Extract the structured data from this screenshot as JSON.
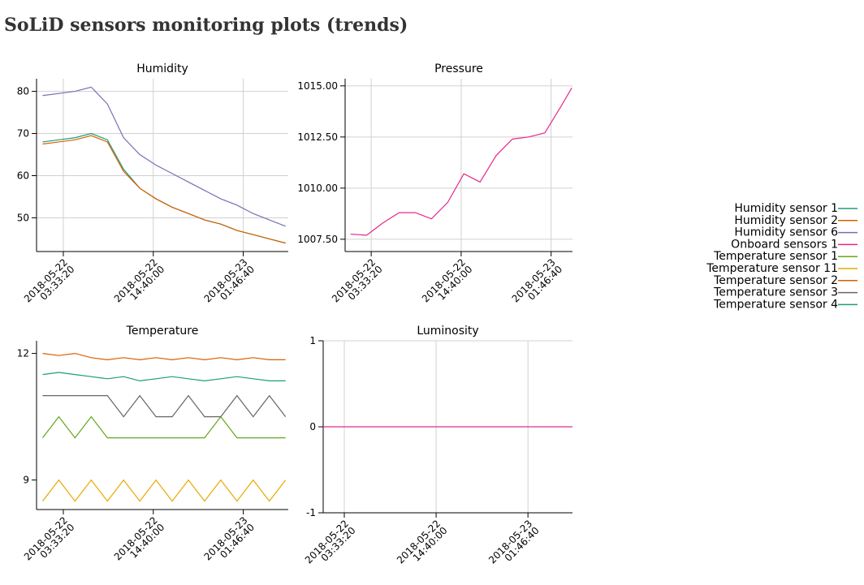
{
  "title": "SoLiD sensors monitoring plots (trends)",
  "chart_data": [
    {
      "type": "line",
      "title": "Humidity",
      "x": [
        "2018-05-22 01:00:00",
        "2018-05-22 03:00:00",
        "2018-05-22 05:00:00",
        "2018-05-22 07:00:00",
        "2018-05-22 09:00:00",
        "2018-05-22 11:00:00",
        "2018-05-22 13:00:00",
        "2018-05-22 15:00:00",
        "2018-05-22 17:00:00",
        "2018-05-22 19:00:00",
        "2018-05-22 21:00:00",
        "2018-05-22 23:00:00",
        "2018-05-23 01:00:00",
        "2018-05-23 03:00:00",
        "2018-05-23 05:00:00",
        "2018-05-23 07:00:00"
      ],
      "xlim": [
        "2018-05-22 00:15:00",
        "2018-05-23 07:20:00"
      ],
      "xticks": [
        "2018-05-22 03:33:20",
        "2018-05-22 14:40:00",
        "2018-05-23 01:46:40"
      ],
      "ylim": [
        42,
        83
      ],
      "yticks": [
        50,
        60,
        70,
        80
      ],
      "grid": true,
      "series": [
        {
          "name": "Humidity sensor 1",
          "color": "#1b9e77",
          "values": [
            68,
            68.5,
            69,
            70,
            68.5,
            61.5,
            57,
            54.5,
            52.5,
            51,
            49.5,
            48.5,
            47,
            46,
            45,
            44
          ]
        },
        {
          "name": "Humidity sensor 2",
          "color": "#d95f02",
          "values": [
            67.5,
            68,
            68.5,
            69.5,
            68,
            61,
            57,
            54.5,
            52.5,
            51,
            49.5,
            48.5,
            47,
            46,
            45,
            44
          ]
        },
        {
          "name": "Humidity sensor 6",
          "color": "#7570b3",
          "values": [
            79,
            79.5,
            80,
            81,
            77,
            69,
            65,
            62.5,
            60.5,
            58.5,
            56.5,
            54.5,
            53,
            51,
            49.5,
            48
          ]
        }
      ]
    },
    {
      "type": "line",
      "title": "Pressure",
      "x": [
        "2018-05-22 01:00:00",
        "2018-05-22 03:00:00",
        "2018-05-22 05:00:00",
        "2018-05-22 07:00:00",
        "2018-05-22 09:00:00",
        "2018-05-22 11:00:00",
        "2018-05-22 13:00:00",
        "2018-05-22 15:00:00",
        "2018-05-22 17:00:00",
        "2018-05-22 19:00:00",
        "2018-05-22 21:00:00",
        "2018-05-22 23:00:00",
        "2018-05-23 01:00:00",
        "2018-05-23 03:00:00",
        "2018-05-23 04:20:00"
      ],
      "xlim": [
        "2018-05-22 00:20:00",
        "2018-05-23 04:25:00"
      ],
      "xticks": [
        "2018-05-22 03:33:20",
        "2018-05-22 14:40:00",
        "2018-05-23 01:46:40"
      ],
      "ylim": [
        1006.9,
        1015.35
      ],
      "yticks": [
        {
          "value": 1007.5,
          "label": "1007.50"
        },
        {
          "value": 1010,
          "label": "1010.00"
        },
        {
          "value": 1012.5,
          "label": "1012.50"
        },
        {
          "value": 1015,
          "label": "1015.00"
        }
      ],
      "grid": true,
      "series": [
        {
          "name": "Onboard sensors 1",
          "color": "#e7298a",
          "values": [
            1007.75,
            1007.7,
            1008.3,
            1008.8,
            1008.8,
            1008.5,
            1009.3,
            1010.7,
            1010.3,
            1011.6,
            1012.4,
            1012.5,
            1012.7,
            1014.0,
            1014.9
          ]
        }
      ]
    },
    {
      "type": "line",
      "title": "Temperature",
      "x": [
        "2018-05-22 01:00:00",
        "2018-05-22 03:00:00",
        "2018-05-22 05:00:00",
        "2018-05-22 07:00:00",
        "2018-05-22 09:00:00",
        "2018-05-22 11:00:00",
        "2018-05-22 13:00:00",
        "2018-05-22 15:00:00",
        "2018-05-22 17:00:00",
        "2018-05-22 19:00:00",
        "2018-05-22 21:00:00",
        "2018-05-22 23:00:00",
        "2018-05-23 01:00:00",
        "2018-05-23 03:00:00",
        "2018-05-23 05:00:00",
        "2018-05-23 07:00:00"
      ],
      "xlim": [
        "2018-05-22 00:15:00",
        "2018-05-23 07:20:00"
      ],
      "xticks": [
        "2018-05-22 03:33:20",
        "2018-05-22 14:40:00",
        "2018-05-23 01:46:40"
      ],
      "ylim": [
        8.3,
        12.3
      ],
      "yticks": [
        9,
        12
      ],
      "grid": false,
      "series": [
        {
          "name": "Temperature sensor 1",
          "color": "#66a61e",
          "values": [
            10,
            10.5,
            10,
            10.5,
            10,
            10,
            10,
            10,
            10,
            10,
            10,
            10.5,
            10,
            10,
            10,
            10
          ]
        },
        {
          "name": "Temperature sensor 11",
          "color": "#e6ab02",
          "values": [
            8.5,
            9,
            8.5,
            9,
            8.5,
            9,
            8.5,
            9,
            8.5,
            9,
            8.5,
            9,
            8.5,
            9,
            8.5,
            9
          ]
        },
        {
          "name": "Temperature sensor 2",
          "color": "#d95f02",
          "values": [
            12,
            11.95,
            12,
            11.9,
            11.85,
            11.9,
            11.85,
            11.9,
            11.85,
            11.9,
            11.85,
            11.9,
            11.85,
            11.9,
            11.85,
            11.85
          ]
        },
        {
          "name": "Temperature sensor 3",
          "color": "#666666",
          "values": [
            11,
            11,
            11,
            11,
            11,
            10.5,
            11,
            10.5,
            10.5,
            11,
            10.5,
            10.5,
            11,
            10.5,
            11,
            10.5
          ]
        },
        {
          "name": "Temperature sensor 4",
          "color": "#1b9e77",
          "values": [
            11.5,
            11.55,
            11.5,
            11.45,
            11.4,
            11.45,
            11.35,
            11.4,
            11.45,
            11.4,
            11.35,
            11.4,
            11.45,
            11.4,
            11.35,
            11.35
          ]
        }
      ]
    },
    {
      "type": "line",
      "title": "Luminosity",
      "x": [
        "2018-05-22 01:00:00",
        "2018-05-23 07:10:00"
      ],
      "xlim": [
        "2018-05-22 01:00:00",
        "2018-05-23 07:10:00"
      ],
      "xticks": [
        "2018-05-22 03:33:20",
        "2018-05-22 14:40:00",
        "2018-05-23 01:46:40"
      ],
      "ylim": [
        -1,
        1
      ],
      "yticks": [
        -1,
        0,
        1
      ],
      "grid": true,
      "series": [
        {
          "name": "Onboard sensors 1",
          "color": "#e7298a",
          "values": [
            0,
            0
          ]
        }
      ]
    }
  ]
}
